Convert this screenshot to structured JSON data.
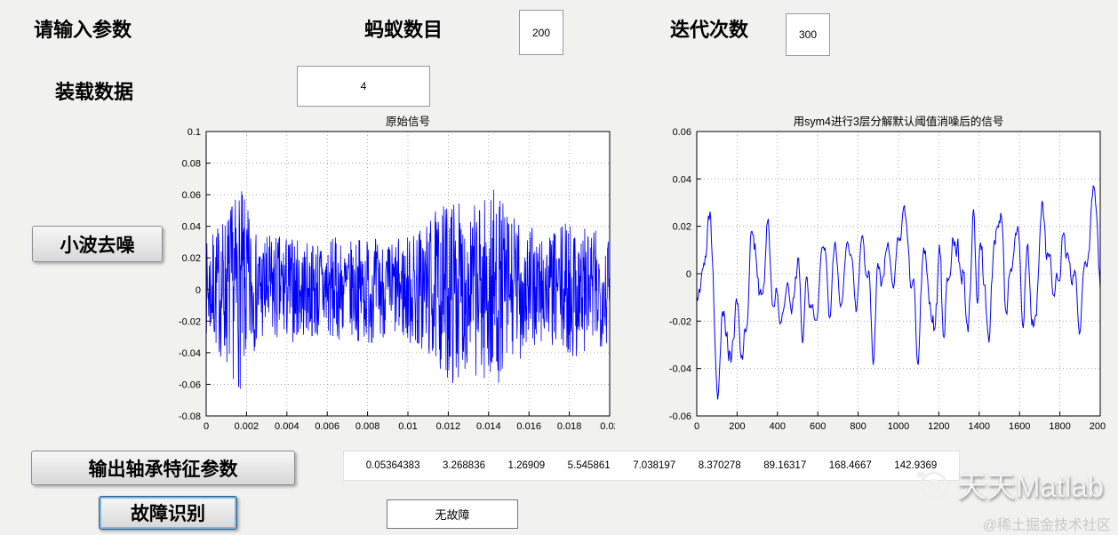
{
  "window": {
    "background": "#f1f1f0"
  },
  "params": {
    "prompt_label": "请输入参数",
    "ant_count_label": "蚂蚁数目",
    "ant_count_value": "200",
    "iterations_label": "迭代次数",
    "iterations_value": "300",
    "load_data_label": "装载数据",
    "wavelet_level_value": "4"
  },
  "buttons": {
    "wavelet_denoise": "小波去噪",
    "output_features": "输出轴承特征参数",
    "fault_identify": "故障识别"
  },
  "results": {
    "feature_values": [
      "0.05364383",
      "3.268836",
      "1.26909",
      "5.545861",
      "7.038197",
      "8.370278",
      "89.16317",
      "168.4667",
      "142.9369"
    ],
    "fault_status": "无故障"
  },
  "watermark": {
    "brand": "天天Matlab",
    "community": "@稀土掘金技术社区",
    "logo_icon": "camera-lens-icon"
  },
  "chart_data": [
    {
      "type": "line",
      "name": "original-signal",
      "title": "原始信号",
      "xlabel": "",
      "ylabel": "",
      "xlim": [
        0,
        0.02
      ],
      "ylim": [
        -0.08,
        0.1
      ],
      "xtick_values": [
        0,
        0.002,
        0.004,
        0.006,
        0.008,
        0.01,
        0.012,
        0.014,
        0.016,
        0.018,
        0.02
      ],
      "xtick_labels": [
        "0",
        "0.002",
        "0.004",
        "0.006",
        "0.008",
        "0.01",
        "0.012",
        "0.014",
        "0.016",
        "0.018",
        "0.02"
      ],
      "ytick_values": [
        -0.08,
        -0.06,
        -0.04,
        -0.02,
        0,
        0.02,
        0.04,
        0.06,
        0.08,
        0.1
      ],
      "ytick_labels": [
        "-0.08",
        "-0.06",
        "-0.04",
        "-0.02",
        "0",
        "0.02",
        "0.04",
        "0.06",
        "0.08",
        "0.1"
      ],
      "grid": true,
      "line_color": "#0000ff",
      "stroke_width": 0.8,
      "gen": {
        "n": 1150,
        "seed": 7,
        "smooth_passes": 0,
        "amp_scale": 1,
        "envelope": [
          [
            0,
            0.03
          ],
          [
            0.001,
            0.05
          ],
          [
            0.0017,
            0.065
          ],
          [
            0.0025,
            0.035
          ],
          [
            0.004,
            0.035
          ],
          [
            0.005,
            0.03
          ],
          [
            0.006,
            0.035
          ],
          [
            0.007,
            0.03
          ],
          [
            0.008,
            0.035
          ],
          [
            0.009,
            0.03
          ],
          [
            0.01,
            0.035
          ],
          [
            0.011,
            0.045
          ],
          [
            0.0122,
            0.06
          ],
          [
            0.013,
            0.05
          ],
          [
            0.0142,
            0.065
          ],
          [
            0.015,
            0.05
          ],
          [
            0.016,
            0.04
          ],
          [
            0.017,
            0.035
          ],
          [
            0.018,
            0.045
          ],
          [
            0.019,
            0.04
          ],
          [
            0.02,
            0.035
          ]
        ]
      }
    },
    {
      "type": "line",
      "name": "denoised-signal",
      "title": "用sym4进行3层分解默认阈值消噪后的信号",
      "xlabel": "",
      "ylabel": "",
      "xlim": [
        0,
        2000
      ],
      "ylim": [
        -0.06,
        0.06
      ],
      "xtick_values": [
        0,
        200,
        400,
        600,
        800,
        1000,
        1200,
        1400,
        1600,
        1800,
        2000
      ],
      "xtick_labels": [
        "0",
        "200",
        "400",
        "600",
        "800",
        "1000",
        "1200",
        "1400",
        "1600",
        "1800",
        "2000"
      ],
      "ytick_values": [
        -0.06,
        -0.04,
        -0.02,
        0,
        0.02,
        0.04,
        0.06
      ],
      "ytick_labels": [
        "-0.06",
        "-0.04",
        "-0.02",
        "0",
        "0.02",
        "0.04",
        "0.06"
      ],
      "grid": true,
      "line_color": "#0000ff",
      "stroke_width": 1,
      "gen": {
        "n": 520,
        "seed": 12,
        "smooth_passes": 2,
        "amp_scale": 1.6,
        "envelope": [
          [
            0,
            0.03
          ],
          [
            80,
            0.06
          ],
          [
            150,
            0.07
          ],
          [
            250,
            0.055
          ],
          [
            350,
            0.05
          ],
          [
            450,
            0.04
          ],
          [
            550,
            0.035
          ],
          [
            700,
            0.03
          ],
          [
            800,
            0.035
          ],
          [
            900,
            0.04
          ],
          [
            1000,
            0.04
          ],
          [
            1100,
            0.045
          ],
          [
            1200,
            0.07
          ],
          [
            1280,
            0.075
          ],
          [
            1400,
            0.065
          ],
          [
            1500,
            0.04
          ],
          [
            1600,
            0.045
          ],
          [
            1700,
            0.05
          ],
          [
            1800,
            0.035
          ],
          [
            1900,
            0.04
          ],
          [
            2000,
            0.045
          ]
        ]
      }
    }
  ]
}
